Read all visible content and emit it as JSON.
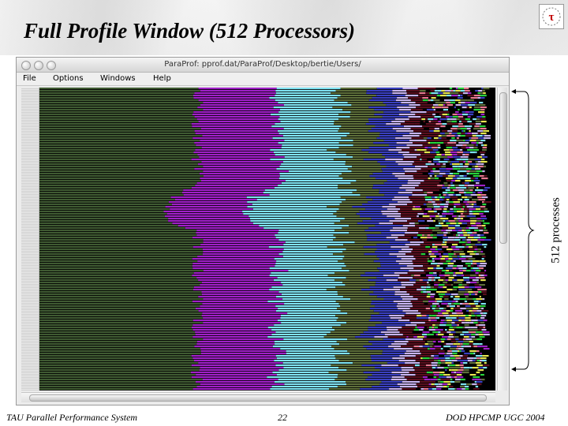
{
  "slide": {
    "title": "Full Profile Window (512 Processors)",
    "annotation": "512 processes",
    "footer_left": "TAU Parallel Performance System",
    "page_number": "22",
    "footer_right": "DOD HPCMP UGC 2004"
  },
  "window": {
    "title": "ParaProf: pprof.dat/ParaProf/Desktop/bertie/Users/",
    "menu": [
      "File",
      "Options",
      "Windows",
      "Help"
    ]
  },
  "profile": {
    "process_count": 512,
    "colors": {
      "olive": "#3f5a32",
      "magenta": "#a020c8",
      "cyan": "#7fe3f2",
      "olive_light": "#5d6e3a",
      "blue": "#3a40c0",
      "lavender": "#c8b4f0",
      "maroon": "#5a0f1e",
      "green": "#28d23c",
      "pink": "#e87890",
      "yellow": "#e6e650",
      "background": "#000000"
    }
  }
}
